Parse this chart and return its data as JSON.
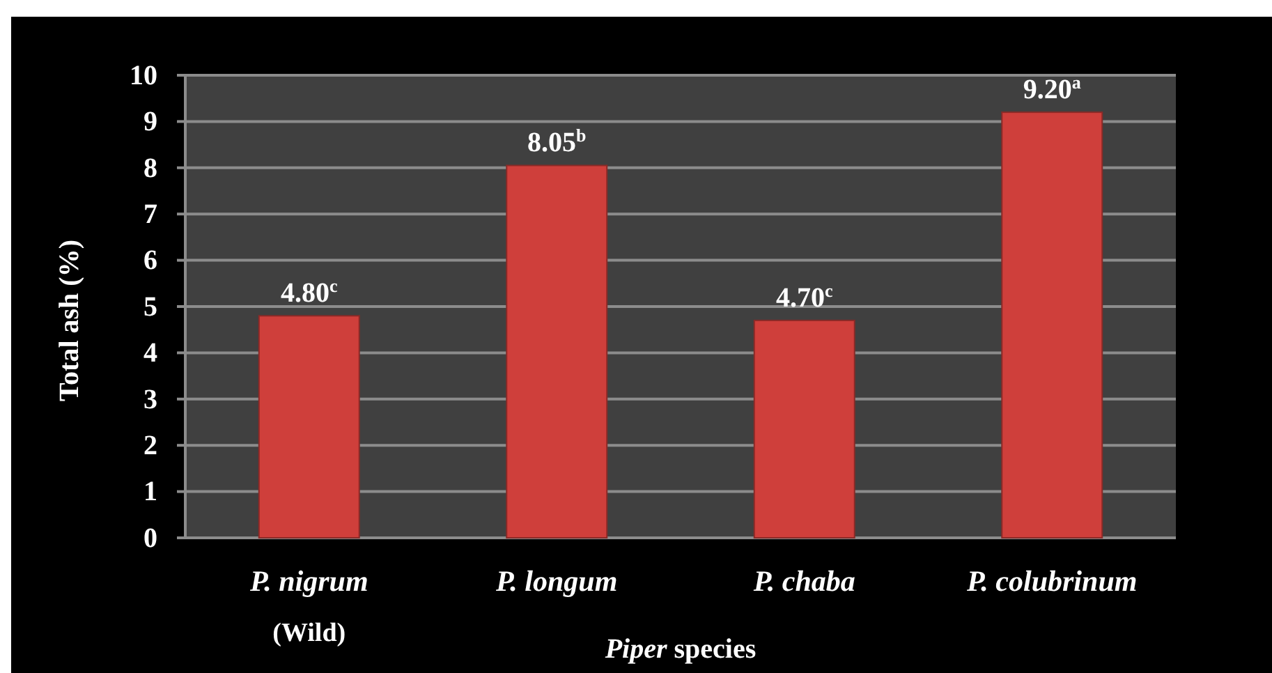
{
  "chart_data": {
    "type": "bar",
    "xlabel": "Piper species",
    "ylabel": "Total ash (%)",
    "categories": [
      "P. nigrum\n(Wild)",
      "P. longum",
      "P. chaba",
      "P. colubrinum"
    ],
    "values": [
      4.8,
      8.05,
      4.7,
      9.2
    ],
    "value_labels": [
      "4.80$^{c}$",
      "8.05$^{b}$",
      "4.70$^{c}$",
      "9.20$^{a}$"
    ],
    "color": "#cf3f3b",
    "ylim": [
      0,
      10
    ],
    "yticks": [
      0,
      1,
      2,
      3,
      4,
      5,
      6,
      7,
      8,
      9,
      10
    ],
    "grid": "y"
  }
}
